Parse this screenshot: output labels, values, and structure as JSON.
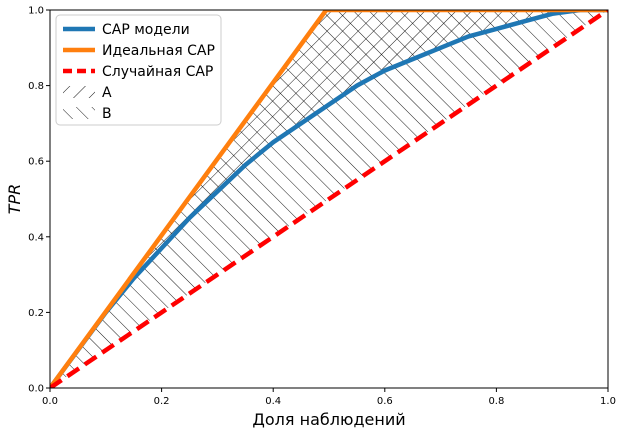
{
  "chart_data": {
    "type": "line",
    "xlabel": "Доля наблюдений",
    "ylabel": "TPR",
    "xlim": [
      0.0,
      1.0
    ],
    "ylim": [
      0.0,
      1.0
    ],
    "x_ticks": [
      "0.0",
      "0.2",
      "0.4",
      "0.6",
      "0.8",
      "1.0"
    ],
    "y_ticks": [
      "0.0",
      "0.2",
      "0.4",
      "0.6",
      "0.8",
      "1.0"
    ],
    "grid": false,
    "legend_position": "top-left",
    "series": [
      {
        "name": "CAP модели",
        "color": "#1f77b4",
        "style": "solid",
        "x": [
          0.0,
          0.05,
          0.1,
          0.15,
          0.2,
          0.25,
          0.3,
          0.35,
          0.4,
          0.45,
          0.5,
          0.55,
          0.6,
          0.65,
          0.7,
          0.75,
          0.8,
          0.85,
          0.9,
          0.95,
          1.0
        ],
        "y": [
          0.0,
          0.1,
          0.2,
          0.29,
          0.37,
          0.45,
          0.52,
          0.59,
          0.65,
          0.7,
          0.75,
          0.8,
          0.84,
          0.87,
          0.9,
          0.93,
          0.95,
          0.97,
          0.99,
          1.0,
          1.0
        ]
      },
      {
        "name": "Идеальная CAP",
        "color": "#ff7f0e",
        "style": "solid",
        "x": [
          0.0,
          0.495,
          1.0
        ],
        "y": [
          0.0,
          1.0,
          1.0
        ]
      },
      {
        "name": "Случайная CAP",
        "color": "#ff0000",
        "style": "dashed",
        "x": [
          0.0,
          1.0
        ],
        "y": [
          0.0,
          1.0
        ]
      }
    ],
    "hatched_areas": [
      {
        "name": "A",
        "hatch": "forward-diagonal",
        "between": [
          "Идеальная CAP",
          "CAP модели"
        ]
      },
      {
        "name": "B",
        "hatch": "back-diagonal",
        "between": [
          "Идеальная CAP",
          "Случайная CAP"
        ]
      }
    ],
    "legend": [
      "CAP модели",
      "Идеальная CAP",
      "Случайная CAP",
      "A",
      "B"
    ]
  }
}
